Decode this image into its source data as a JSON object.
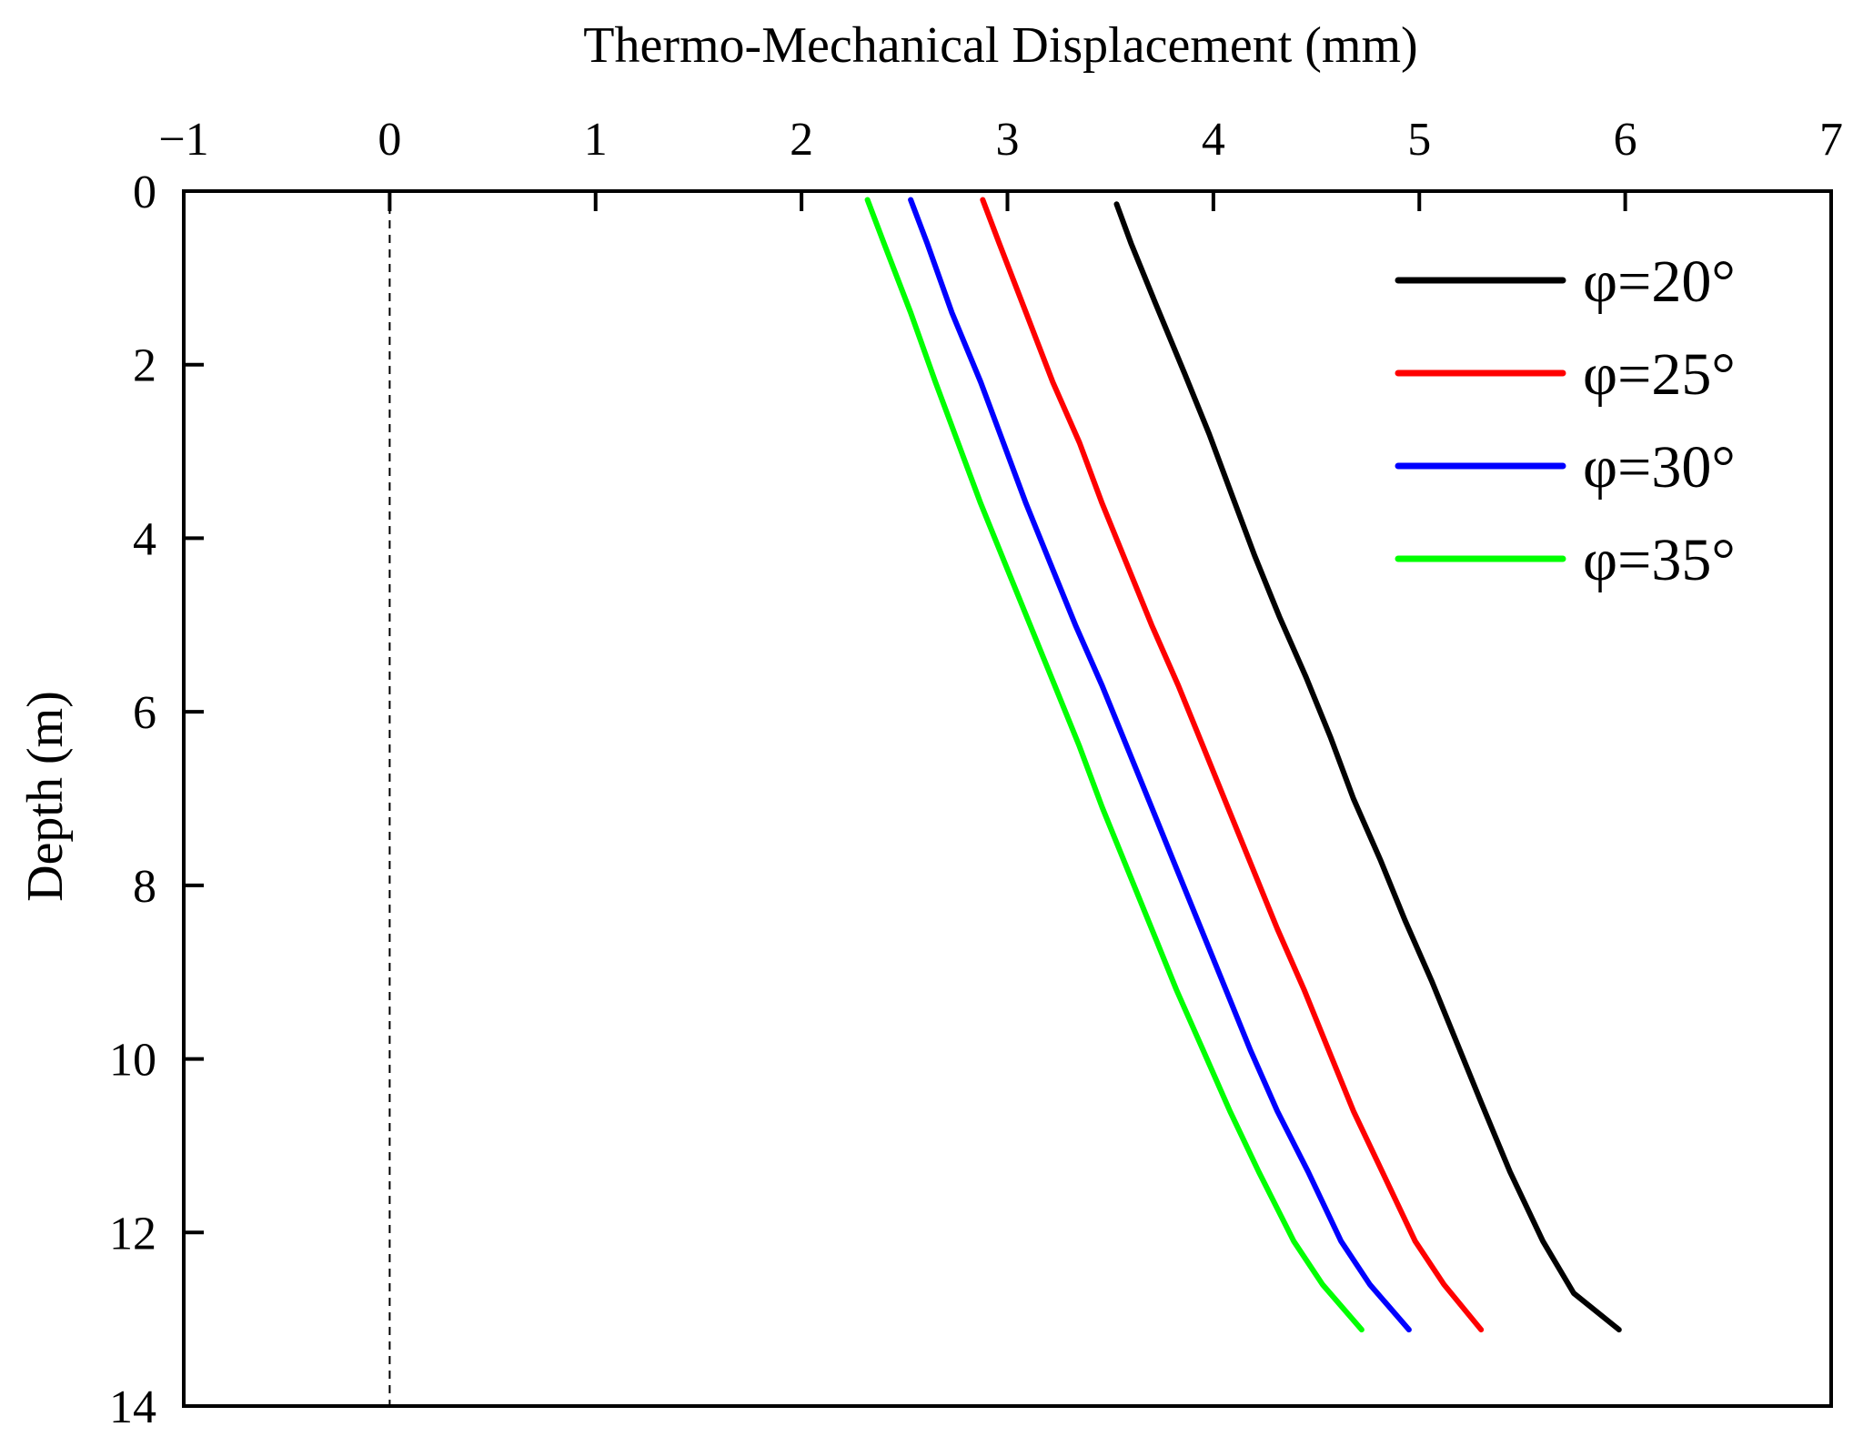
{
  "chart_data": {
    "type": "line",
    "title": "",
    "xlabel": "Thermo-Mechanical Displacement (mm)",
    "ylabel": "Depth (m)",
    "xlim": [
      -1,
      7
    ],
    "ylim": [
      0,
      14
    ],
    "y_inverted": true,
    "x_axis_position": "top",
    "xticks": [
      -1,
      0,
      1,
      2,
      3,
      4,
      5,
      6,
      7
    ],
    "xtick_labels": [
      "−1",
      "0",
      "1",
      "2",
      "3",
      "4",
      "5",
      "6",
      "7"
    ],
    "yticks": [
      0,
      2,
      4,
      6,
      8,
      10,
      12,
      14
    ],
    "ytick_labels": [
      "0",
      "2",
      "4",
      "6",
      "8",
      "10",
      "12",
      "14"
    ],
    "reference_line": {
      "x": 0,
      "style": "dashed"
    },
    "legend_position": "top-right",
    "series": [
      {
        "name": "φ=20°",
        "color": "#000000",
        "points": [
          [
            3.53,
            0.15
          ],
          [
            3.6,
            0.6
          ],
          [
            3.72,
            1.3
          ],
          [
            3.86,
            2.1
          ],
          [
            3.98,
            2.8
          ],
          [
            4.09,
            3.5
          ],
          [
            4.2,
            4.2
          ],
          [
            4.32,
            4.9
          ],
          [
            4.45,
            5.6
          ],
          [
            4.57,
            6.3
          ],
          [
            4.68,
            7.0
          ],
          [
            4.81,
            7.7
          ],
          [
            4.93,
            8.4
          ],
          [
            5.06,
            9.1
          ],
          [
            5.18,
            9.8
          ],
          [
            5.3,
            10.5
          ],
          [
            5.44,
            11.3
          ],
          [
            5.6,
            12.1
          ],
          [
            5.75,
            12.7
          ],
          [
            5.97,
            13.12
          ]
        ]
      },
      {
        "name": "φ=25°",
        "color": "#ff0000",
        "points": [
          [
            2.88,
            0.1
          ],
          [
            2.96,
            0.6
          ],
          [
            3.09,
            1.4
          ],
          [
            3.22,
            2.2
          ],
          [
            3.35,
            2.9
          ],
          [
            3.46,
            3.6
          ],
          [
            3.58,
            4.3
          ],
          [
            3.7,
            5.0
          ],
          [
            3.83,
            5.7
          ],
          [
            3.95,
            6.4
          ],
          [
            4.07,
            7.1
          ],
          [
            4.19,
            7.8
          ],
          [
            4.31,
            8.5
          ],
          [
            4.44,
            9.2
          ],
          [
            4.56,
            9.9
          ],
          [
            4.68,
            10.6
          ],
          [
            4.82,
            11.3
          ],
          [
            4.98,
            12.1
          ],
          [
            5.12,
            12.6
          ],
          [
            5.3,
            13.12
          ]
        ]
      },
      {
        "name": "φ=30°",
        "color": "#0000ff",
        "points": [
          [
            2.53,
            0.1
          ],
          [
            2.61,
            0.6
          ],
          [
            2.73,
            1.4
          ],
          [
            2.87,
            2.2
          ],
          [
            2.98,
            2.9
          ],
          [
            3.09,
            3.6
          ],
          [
            3.21,
            4.3
          ],
          [
            3.33,
            5.0
          ],
          [
            3.46,
            5.7
          ],
          [
            3.58,
            6.4
          ],
          [
            3.7,
            7.1
          ],
          [
            3.82,
            7.8
          ],
          [
            3.94,
            8.5
          ],
          [
            4.06,
            9.2
          ],
          [
            4.18,
            9.9
          ],
          [
            4.31,
            10.6
          ],
          [
            4.46,
            11.3
          ],
          [
            4.62,
            12.1
          ],
          [
            4.76,
            12.6
          ],
          [
            4.95,
            13.12
          ]
        ]
      },
      {
        "name": "φ=35°",
        "color": "#00ff00",
        "points": [
          [
            2.32,
            0.1
          ],
          [
            2.4,
            0.6
          ],
          [
            2.53,
            1.4
          ],
          [
            2.65,
            2.2
          ],
          [
            2.76,
            2.9
          ],
          [
            2.87,
            3.6
          ],
          [
            2.99,
            4.3
          ],
          [
            3.11,
            5.0
          ],
          [
            3.23,
            5.7
          ],
          [
            3.35,
            6.4
          ],
          [
            3.46,
            7.1
          ],
          [
            3.58,
            7.8
          ],
          [
            3.7,
            8.5
          ],
          [
            3.82,
            9.2
          ],
          [
            3.95,
            9.9
          ],
          [
            4.08,
            10.6
          ],
          [
            4.22,
            11.3
          ],
          [
            4.39,
            12.1
          ],
          [
            4.53,
            12.6
          ],
          [
            4.72,
            13.12
          ]
        ]
      }
    ]
  }
}
